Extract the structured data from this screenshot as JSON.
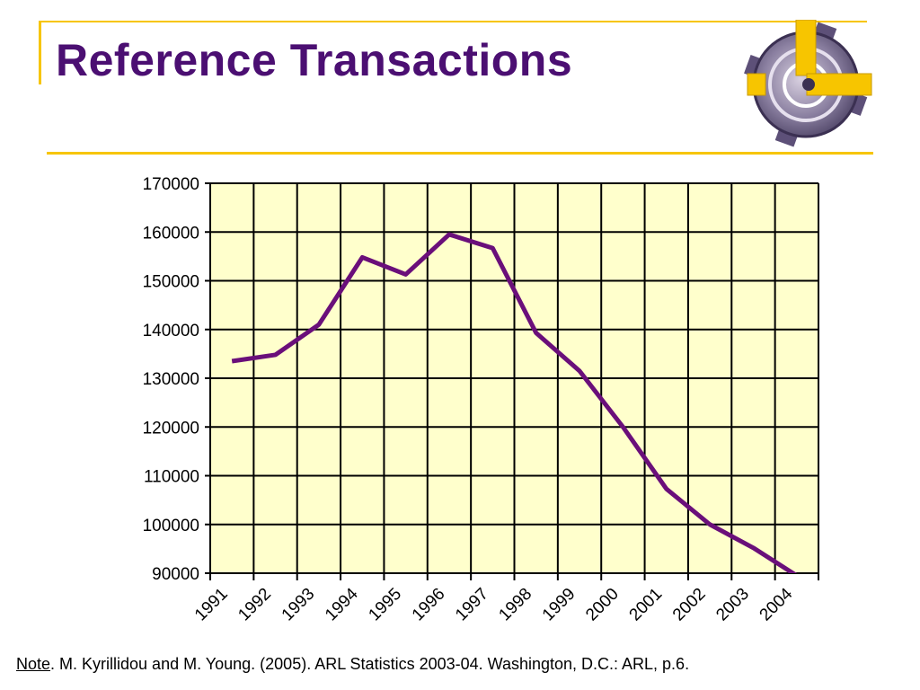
{
  "slide": {
    "title": "Reference Transactions",
    "note_label": "Note",
    "note_text": ". M. Kyrillidou and M. Young. (2005).  ARL Statistics 2003-04. Washington, D.C.: ARL, p.6."
  },
  "colors": {
    "title": "#4b0f72",
    "accent": "#f7c500",
    "plot_background": "#ffffcc",
    "series_line": "#6a0f7a"
  },
  "logo_icon": "clock-gear-logo-icon",
  "chart_data": {
    "type": "line",
    "title": "",
    "xlabel": "",
    "ylabel": "",
    "categories": [
      "1991",
      "1992",
      "1993",
      "1994",
      "1995",
      "1996",
      "1997",
      "1998",
      "1999",
      "2000",
      "2001",
      "2002",
      "2003",
      "2004"
    ],
    "ylim": [
      90000,
      170000
    ],
    "yticks": [
      "170000",
      "160000",
      "150000",
      "140000",
      "130000",
      "120000",
      "110000",
      "100000",
      "90000"
    ],
    "grid": true,
    "legend": "none",
    "series": [
      {
        "values": [
          133500,
          134800,
          141000,
          154800,
          151300,
          159500,
          156700,
          139300,
          131500,
          120000,
          107300,
          100000,
          95200,
          89500
        ]
      }
    ]
  }
}
